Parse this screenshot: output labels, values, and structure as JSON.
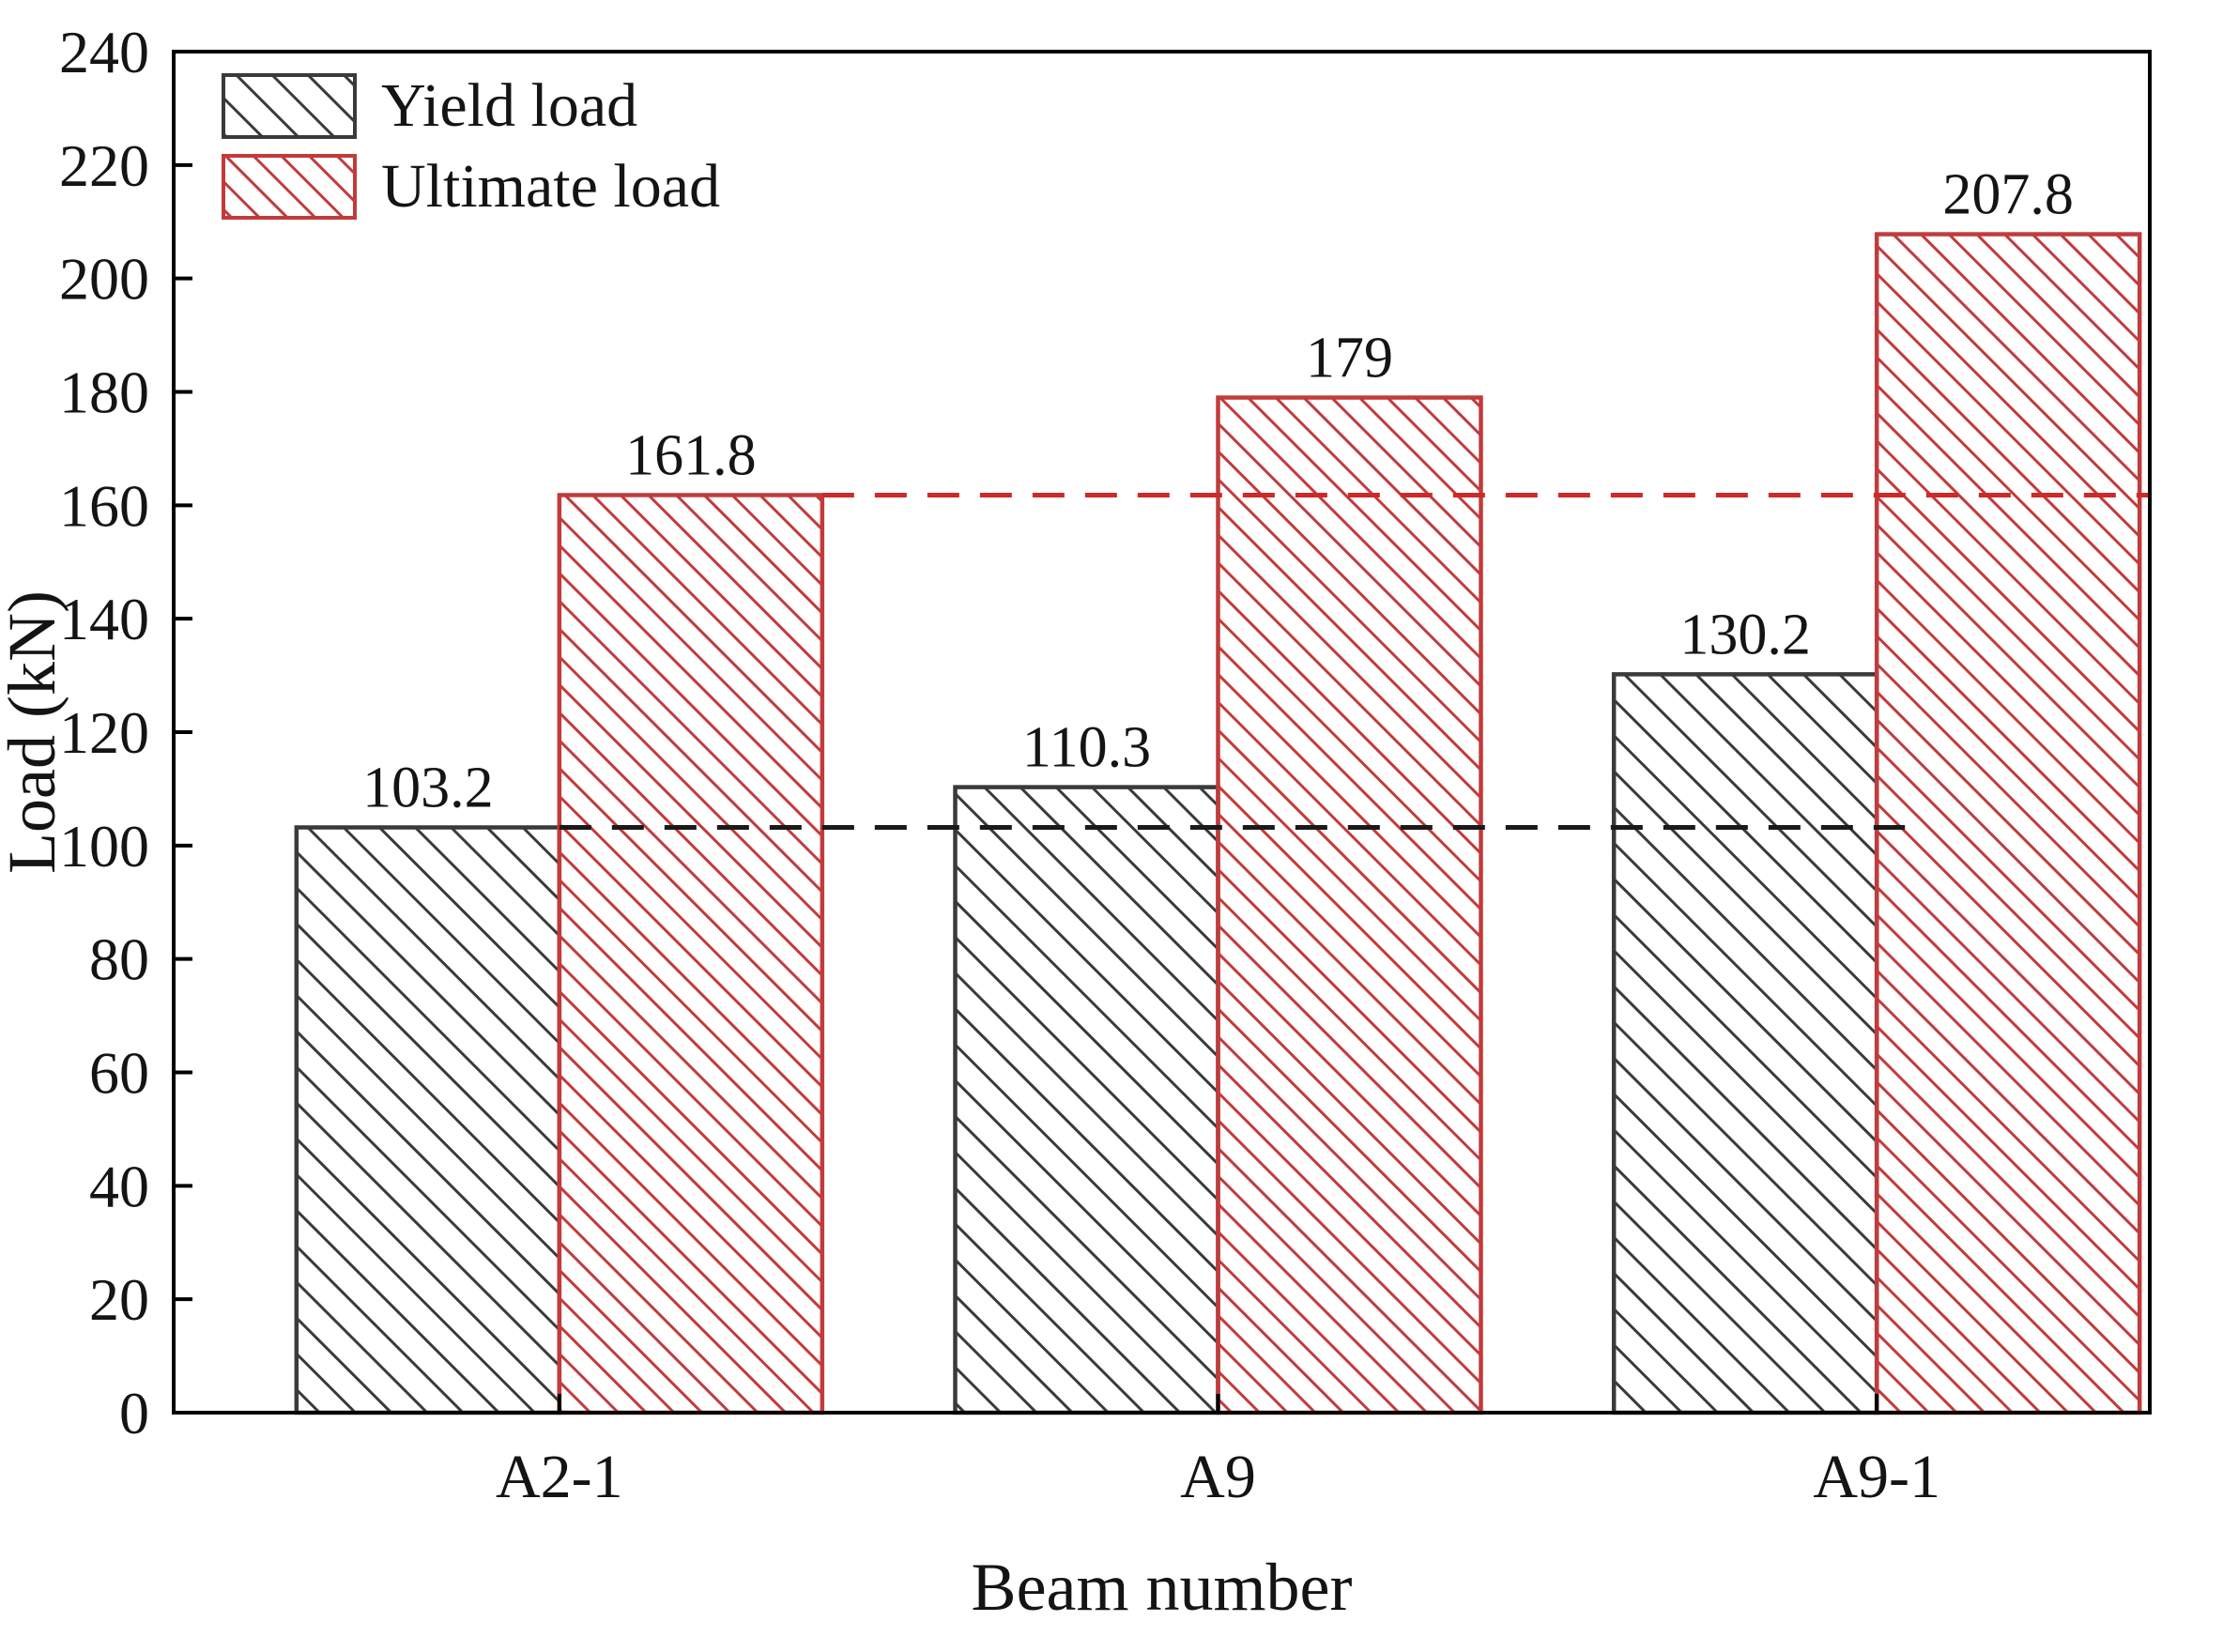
{
  "figure": {
    "background": "#ffffff"
  },
  "chart_data": {
    "type": "bar",
    "title": "",
    "xlabel": "Beam number",
    "ylabel": "Load (kN)",
    "categories": [
      "A2-1",
      "A9",
      "A9-1"
    ],
    "series": [
      {
        "name": "Yield load",
        "color": "#3a3a3a",
        "values": [
          103.2,
          110.3,
          130.2
        ],
        "labels": [
          "103.2",
          "110.3",
          "130.2"
        ]
      },
      {
        "name": "Ultimate load",
        "color": "#c23b3b",
        "values": [
          161.8,
          179,
          207.8
        ],
        "labels": [
          "161.8",
          "179",
          "207.8"
        ]
      }
    ],
    "ylim": [
      0,
      240
    ],
    "ytick_step": 20,
    "ytick_labels": [
      "0",
      "20",
      "40",
      "60",
      "80",
      "100",
      "120",
      "140",
      "160",
      "180",
      "200",
      "220",
      "240"
    ],
    "grid": false,
    "legend_position": "top-left",
    "legend_entries": [
      "Yield load",
      "Ultimate load"
    ],
    "reference_lines": [
      {
        "value": 103.2,
        "series": 0,
        "color": "#1a1a1a",
        "style": "dashed"
      },
      {
        "value": 161.8,
        "series": 1,
        "color": "#cc2a2a",
        "style": "dashed"
      }
    ],
    "hatch": "diagonal",
    "axis_color": "#000000"
  }
}
